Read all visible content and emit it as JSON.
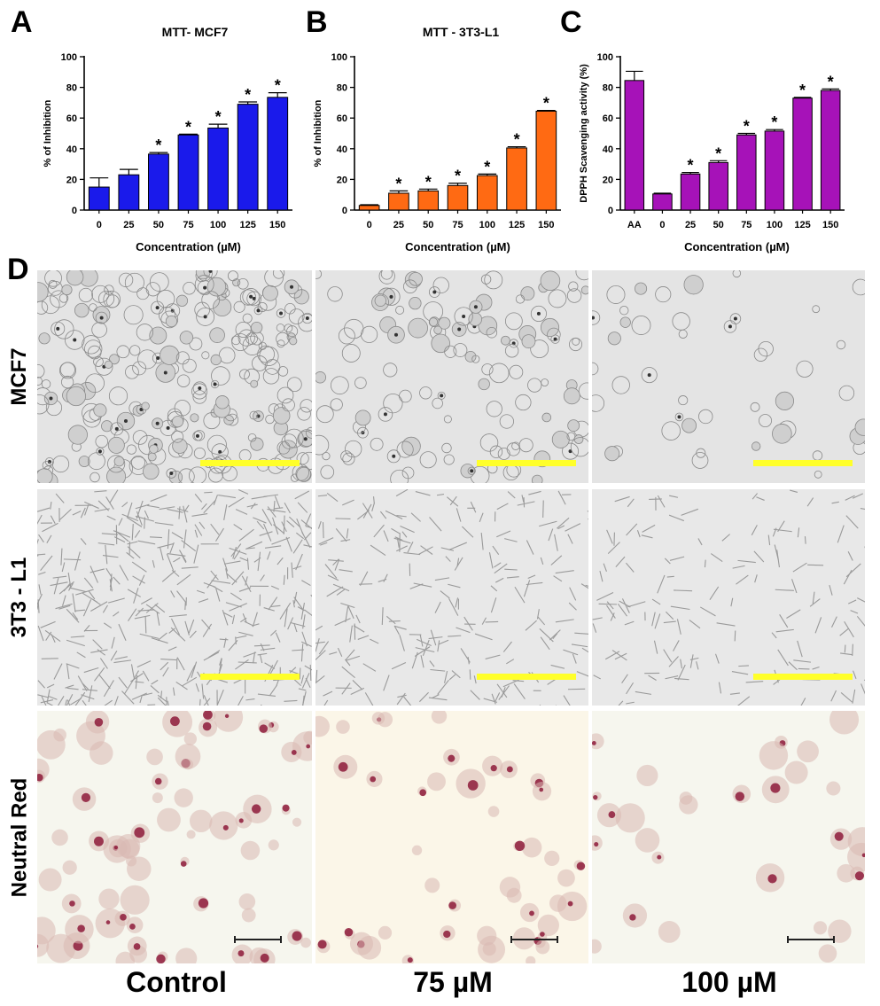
{
  "panels": {
    "A": "A",
    "B": "B",
    "C": "C",
    "D": "D"
  },
  "chart_data": [
    {
      "type": "bar",
      "title": "MTT- MCF7",
      "xlabel": "Concentration (µM)",
      "ylabel": "% of Inhibition",
      "ylim": [
        0,
        100
      ],
      "yticks": [
        "0",
        "20",
        "40",
        "60",
        "80",
        "100"
      ],
      "categories": [
        "0",
        "25",
        "50",
        "75",
        "100",
        "125",
        "150"
      ],
      "values": [
        15,
        23,
        36.5,
        49,
        53.5,
        69,
        73.5
      ],
      "errors": [
        6,
        3.5,
        1,
        0.5,
        2.5,
        1.5,
        3
      ],
      "significant": [
        "",
        "",
        "*",
        "*",
        "*",
        "*",
        "*"
      ],
      "color": "#1a1aeb",
      "grid": false
    },
    {
      "type": "bar",
      "title": "MTT - 3T3-L1",
      "xlabel": "Concentration (µM)",
      "ylabel": "% of Inhibition",
      "ylim": [
        0,
        100
      ],
      "yticks": [
        "0",
        "20",
        "40",
        "60",
        "80",
        "100"
      ],
      "categories": [
        "0",
        "25",
        "50",
        "75",
        "100",
        "125",
        "150"
      ],
      "values": [
        3,
        11,
        12.5,
        16,
        22.5,
        40.5,
        64.5
      ],
      "errors": [
        0.5,
        1.5,
        1.2,
        1.5,
        1,
        0.8,
        0.5
      ],
      "significant": [
        "",
        "*",
        "*",
        "*",
        "*",
        "*",
        "*"
      ],
      "color": "#ff6a13",
      "grid": false
    },
    {
      "type": "bar",
      "title": "",
      "xlabel": "Concentration (µM)",
      "ylabel": "DPPH Scavenging activity (%)",
      "ylim": [
        0,
        100
      ],
      "yticks": [
        "0",
        "20",
        "40",
        "60",
        "80",
        "100"
      ],
      "categories": [
        "AA",
        "0",
        "25",
        "50",
        "75",
        "100",
        "125",
        "150"
      ],
      "values": [
        84.5,
        10.5,
        23.5,
        31,
        49,
        51.5,
        73,
        78
      ],
      "errors": [
        6,
        0.5,
        1,
        1.2,
        1,
        1,
        0.5,
        1
      ],
      "significant": [
        "",
        "",
        "*",
        "*",
        "*",
        "*",
        "*",
        "*"
      ],
      "color": "#a612b8",
      "grid": false
    }
  ],
  "micrographs": {
    "rows": [
      "MCF7",
      "3T3 - L1",
      "Neutral Red"
    ],
    "columns": [
      "Control",
      "75 µM",
      "100 µM"
    ],
    "scalebar_color": "#ffff2a"
  }
}
